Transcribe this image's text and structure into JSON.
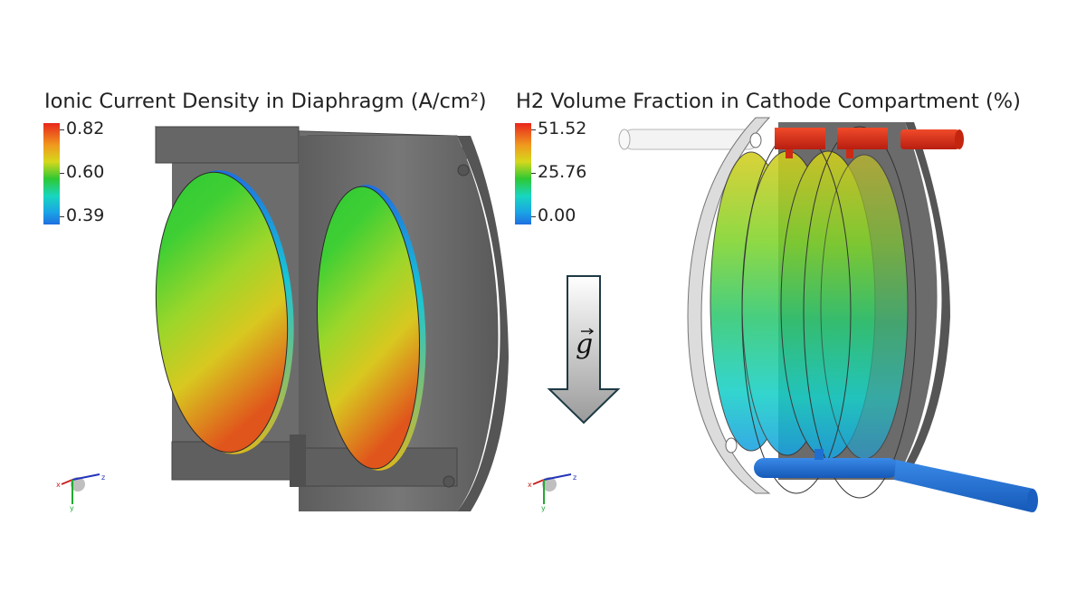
{
  "left_panel": {
    "title": "Ionic Current Density in Diaphragm (A/cm²)",
    "colorbar": {
      "max": "0.82",
      "mid": "0.60",
      "min": "0.39"
    },
    "axes": {
      "x": "x",
      "y": "y",
      "z": "z"
    }
  },
  "right_panel": {
    "title": "H2 Volume Fraction in Cathode Compartment (%)",
    "colorbar": {
      "max": "51.52",
      "mid": "25.76",
      "min": "0.00"
    },
    "axes": {
      "x": "x",
      "y": "y",
      "z": "z"
    }
  },
  "gravity": {
    "label": "g"
  },
  "colors": {
    "housing": "#6a6a6a",
    "inlet_pipe": "#1f74d6",
    "outlet_pipe": "#d9301c",
    "colormap": [
      "#e8261c",
      "#d6d81c",
      "#2ec834",
      "#18d6c0",
      "#1f6fe0"
    ]
  }
}
